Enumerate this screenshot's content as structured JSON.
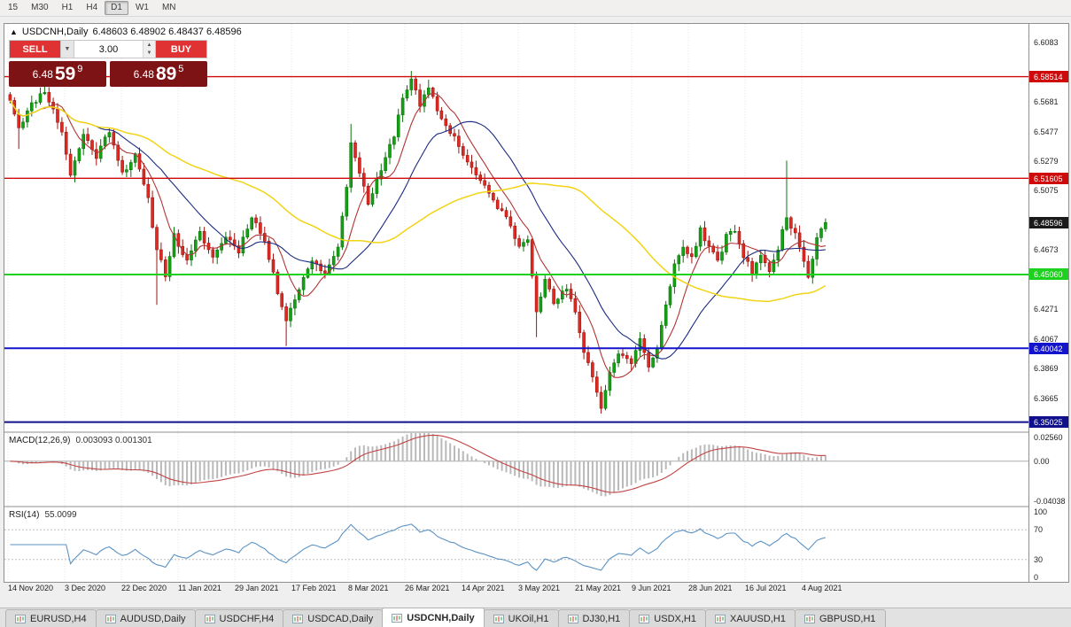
{
  "app": {
    "toolbar": {
      "timeframes": [
        {
          "label": "15",
          "active": false
        },
        {
          "label": "M30",
          "active": false
        },
        {
          "label": "H1",
          "active": false
        },
        {
          "label": "H4",
          "active": false
        },
        {
          "label": "D1",
          "active": true
        },
        {
          "label": "W1",
          "active": false
        },
        {
          "label": "MN",
          "active": false
        }
      ]
    },
    "tabs": [
      {
        "label": "EURUSD,H4",
        "active": false
      },
      {
        "label": "AUDUSD,Daily",
        "active": false
      },
      {
        "label": "USDCHF,H4",
        "active": false
      },
      {
        "label": "USDCAD,Daily",
        "active": false
      },
      {
        "label": "USDCNH,Daily",
        "active": true
      },
      {
        "label": "UKOil,H1",
        "active": false
      },
      {
        "label": "DJ30,H1",
        "active": false
      },
      {
        "label": "USDX,H1",
        "active": false
      },
      {
        "label": "XAUUSD,H1",
        "active": false
      },
      {
        "label": "GBPUSD,H1",
        "active": false
      }
    ]
  },
  "chart": {
    "symbol_period": "USDCNH,Daily",
    "ohlc": "6.48603 6.48902 6.48437 6.48596"
  },
  "trade_panel": {
    "sell_label": "SELL",
    "buy_label": "BUY",
    "volume": "3.00",
    "sell_price": {
      "prefix": "6.48",
      "big": "59",
      "sup": "9"
    },
    "buy_price": {
      "prefix": "6.48",
      "big": "89",
      "sup": "5"
    }
  },
  "chart_data": {
    "type": "candlestick",
    "symbol": "USDCNH",
    "timeframe": "Daily",
    "last_close": 6.48596,
    "bars": 190,
    "seed": 11,
    "noise": 0.002,
    "price_axis": {
      "min": 6.344,
      "max": 6.621,
      "ticks": [
        {
          "t": "6.6083",
          "v": 6.6083
        },
        {
          "t": "6.5882",
          "v": 6.5882
        },
        {
          "t": "6.5681",
          "v": 6.5681
        },
        {
          "t": "6.5477",
          "v": 6.5477
        },
        {
          "t": "6.5279",
          "v": 6.5279
        },
        {
          "t": "6.5075",
          "v": 6.5075
        },
        {
          "t": "6.4871",
          "v": 6.4871
        },
        {
          "t": "6.4673",
          "v": 6.4673
        },
        {
          "t": "6.4469",
          "v": 6.4469
        },
        {
          "t": "6.4271",
          "v": 6.4271
        },
        {
          "t": "6.4067",
          "v": 6.4067
        },
        {
          "t": "6.3869",
          "v": 6.3869
        },
        {
          "t": "6.3665",
          "v": 6.3665
        },
        {
          "t": "6.3470",
          "v": 6.347
        }
      ]
    },
    "x_labels": [
      "14 Nov 2020",
      "3 Dec 2020",
      "22 Dec 2020",
      "11 Jan 2021",
      "29 Jan 2021",
      "17 Feb 2021",
      "8 Mar 2021",
      "26 Mar 2021",
      "14 Apr 2021",
      "3 May 2021",
      "21 May 2021",
      "9 Jun 2021",
      "28 Jun 2021",
      "16 Jul 2021",
      "4 Aug 2021"
    ],
    "close_anchors": [
      [
        0,
        6.57
      ],
      [
        2,
        6.551
      ],
      [
        5,
        6.566
      ],
      [
        8,
        6.576
      ],
      [
        12,
        6.548
      ],
      [
        14,
        6.518
      ],
      [
        17,
        6.546
      ],
      [
        20,
        6.531
      ],
      [
        23,
        6.549
      ],
      [
        26,
        6.52
      ],
      [
        29,
        6.531
      ],
      [
        32,
        6.501
      ],
      [
        34,
        6.468
      ],
      [
        36,
        6.451
      ],
      [
        38,
        6.477
      ],
      [
        41,
        6.459
      ],
      [
        44,
        6.479
      ],
      [
        47,
        6.462
      ],
      [
        50,
        6.477
      ],
      [
        53,
        6.467
      ],
      [
        56,
        6.491
      ],
      [
        59,
        6.473
      ],
      [
        62,
        6.439
      ],
      [
        64,
        6.421
      ],
      [
        67,
        6.441
      ],
      [
        70,
        6.461
      ],
      [
        73,
        6.451
      ],
      [
        76,
        6.471
      ],
      [
        78,
        6.508
      ],
      [
        79,
        6.542
      ],
      [
        81,
        6.52
      ],
      [
        83,
        6.499
      ],
      [
        86,
        6.521
      ],
      [
        89,
        6.546
      ],
      [
        91,
        6.571
      ],
      [
        93,
        6.584
      ],
      [
        95,
        6.565
      ],
      [
        97,
        6.577
      ],
      [
        100,
        6.556
      ],
      [
        103,
        6.544
      ],
      [
        106,
        6.527
      ],
      [
        109,
        6.514
      ],
      [
        112,
        6.501
      ],
      [
        115,
        6.489
      ],
      [
        118,
        6.47
      ],
      [
        120,
        6.476
      ],
      [
        122,
        6.427
      ],
      [
        124,
        6.447
      ],
      [
        126,
        6.431
      ],
      [
        129,
        6.441
      ],
      [
        131,
        6.424
      ],
      [
        133,
        6.399
      ],
      [
        135,
        6.381
      ],
      [
        137,
        6.361
      ],
      [
        139,
        6.384
      ],
      [
        141,
        6.397
      ],
      [
        144,
        6.391
      ],
      [
        146,
        6.407
      ],
      [
        148,
        6.387
      ],
      [
        150,
        6.399
      ],
      [
        152,
        6.431
      ],
      [
        154,
        6.457
      ],
      [
        156,
        6.469
      ],
      [
        158,
        6.462
      ],
      [
        160,
        6.481
      ],
      [
        162,
        6.469
      ],
      [
        164,
        6.459
      ],
      [
        166,
        6.476
      ],
      [
        168,
        6.481
      ],
      [
        170,
        6.463
      ],
      [
        172,
        6.452
      ],
      [
        174,
        6.465
      ],
      [
        176,
        6.451
      ],
      [
        178,
        6.469
      ],
      [
        180,
        6.491
      ],
      [
        182,
        6.477
      ],
      [
        184,
        6.461
      ],
      [
        185,
        6.449
      ],
      [
        187,
        6.477
      ],
      [
        189,
        6.48596
      ]
    ],
    "spikes": [
      {
        "i": 2,
        "low": 6.536
      },
      {
        "i": 8,
        "high": 6.582
      },
      {
        "i": 34,
        "low": 6.43
      },
      {
        "i": 64,
        "low": 6.402
      },
      {
        "i": 79,
        "high": 6.553
      },
      {
        "i": 93,
        "high": 6.589
      },
      {
        "i": 97,
        "high": 6.583
      },
      {
        "i": 122,
        "low": 6.408
      },
      {
        "i": 137,
        "low": 6.356
      },
      {
        "i": 180,
        "high": 6.528
      }
    ],
    "levels": [
      {
        "price": 6.58514,
        "label": "6.58514",
        "color": "#cf0a0a",
        "width": 1.4
      },
      {
        "price": 6.51605,
        "label": "6.51605",
        "color": "#cf0a0a",
        "width": 1.4
      },
      {
        "price": 6.4506,
        "label": "6.45060",
        "color": "#1fd11f",
        "width": 2
      },
      {
        "price": 6.40042,
        "label": "6.40042",
        "color": "#1414cc",
        "width": 2
      },
      {
        "price": 6.35025,
        "label": "6.35025",
        "color": "#10108c",
        "width": 2
      }
    ],
    "current_price": {
      "label": "6.48596",
      "price": 6.48596,
      "color": "#1a1a1a"
    },
    "moving_averages": [
      {
        "period": 8,
        "color": "#b23434",
        "width": 1.1
      },
      {
        "period": 21,
        "color": "#1b2b82",
        "width": 1.1
      },
      {
        "period": 55,
        "color": "#f2d414",
        "width": 1.5
      }
    ],
    "candle_colors": {
      "up": "#14a114",
      "up_border": "#0b730b",
      "down": "#de2a22",
      "down_border": "#9e140f"
    },
    "macd": {
      "name": "MACD(12,26,9)",
      "values": "0.003093 0.001301",
      "fast": 12,
      "slow": 26,
      "signal_period": 9,
      "range": [
        -0.0404,
        0.0256
      ],
      "axis": [
        {
          "t": "0.02560",
          "v": 0.0256
        },
        {
          "t": "0.00",
          "v": 0
        },
        {
          "t": "-0.04038",
          "v": -0.0404
        }
      ],
      "hist_color": "#b9b9b9",
      "signal_color": "#c24444"
    },
    "rsi": {
      "name": "RSI(14)",
      "value": "55.0099",
      "period": 14,
      "levels": [
        70,
        30
      ],
      "axis": [
        {
          "t": "100",
          "v": 100
        },
        {
          "t": "70",
          "v": 70
        },
        {
          "t": "30",
          "v": 30
        },
        {
          "t": "0",
          "v": 0
        }
      ],
      "color": "#5b93c5"
    }
  }
}
